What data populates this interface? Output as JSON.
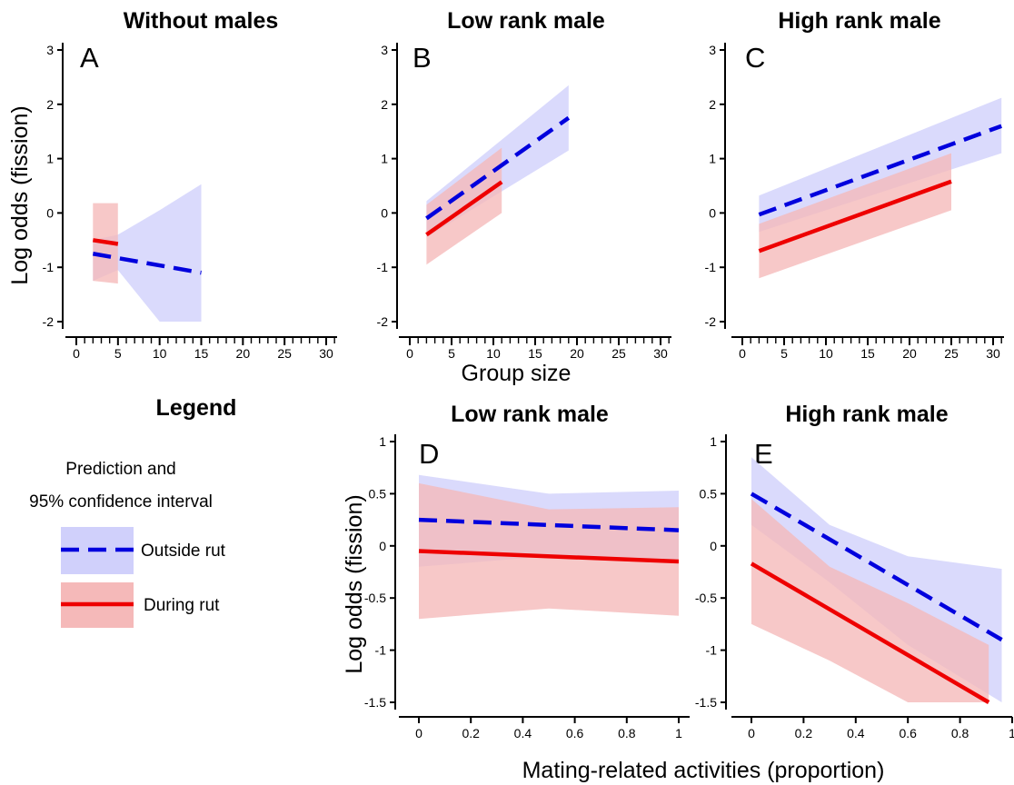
{
  "chart_data": [
    {
      "type": "line",
      "panel": "A",
      "title": "Without males",
      "ylabel": "Log odds (fission)",
      "xlabel": "",
      "xlim": [
        0,
        32
      ],
      "ylim": [
        -2.2,
        3.2
      ],
      "xticks": [
        0,
        5,
        10,
        15,
        20,
        25,
        30
      ],
      "yticks": [
        -2,
        -1,
        0,
        1,
        2,
        3
      ],
      "series": [
        {
          "name": "Outside rut",
          "style": "dashed",
          "color": "#0000dd",
          "band_color": "#d0d0fb",
          "x": [
            2,
            15
          ],
          "y": [
            -0.75,
            -1.1
          ],
          "band": {
            "x": [
              2,
              5,
              10,
              15
            ],
            "lower": [
              -1.25,
              -1.05,
              -2.0,
              -2.0
            ],
            "upper": [
              -0.5,
              -0.4,
              0.05,
              0.53
            ]
          }
        },
        {
          "name": "During rut",
          "style": "solid",
          "color": "#ee0000",
          "band_color": "#f5b9b9",
          "x": [
            2,
            5
          ],
          "y": [
            -0.5,
            -0.57
          ],
          "band": {
            "x": [
              2,
              5
            ],
            "lower": [
              -1.25,
              -1.3
            ],
            "upper": [
              0.18,
              0.18
            ]
          }
        }
      ]
    },
    {
      "type": "line",
      "panel": "B",
      "title": "Low rank male",
      "ylabel": "",
      "xlabel": "Group size",
      "xlim": [
        0,
        32
      ],
      "ylim": [
        -2.2,
        3.2
      ],
      "xticks": [
        0,
        5,
        10,
        15,
        20,
        25,
        30
      ],
      "yticks": [
        -2,
        -1,
        0,
        1,
        2,
        3
      ],
      "series": [
        {
          "name": "Outside rut",
          "style": "dashed",
          "color": "#0000dd",
          "band_color": "#d0d0fb",
          "x": [
            2,
            19
          ],
          "y": [
            -0.1,
            1.75
          ],
          "band": {
            "x": [
              2,
              19
            ],
            "lower": [
              -0.45,
              1.15
            ],
            "upper": [
              0.22,
              2.35
            ]
          }
        },
        {
          "name": "During rut",
          "style": "solid",
          "color": "#ee0000",
          "band_color": "#f5b9b9",
          "x": [
            2,
            11
          ],
          "y": [
            -0.4,
            0.57
          ],
          "band": {
            "x": [
              2,
              11
            ],
            "lower": [
              -0.95,
              0.0
            ],
            "upper": [
              0.15,
              1.2
            ]
          }
        }
      ]
    },
    {
      "type": "line",
      "panel": "C",
      "title": "High rank male",
      "ylabel": "",
      "xlabel": "",
      "xlim": [
        0,
        32
      ],
      "ylim": [
        -2.2,
        3.2
      ],
      "xticks": [
        0,
        5,
        10,
        15,
        20,
        25,
        30
      ],
      "yticks": [
        -2,
        -1,
        0,
        1,
        2,
        3
      ],
      "series": [
        {
          "name": "Outside rut",
          "style": "dashed",
          "color": "#0000dd",
          "band_color": "#d0d0fb",
          "x": [
            2,
            31
          ],
          "y": [
            -0.03,
            1.6
          ],
          "band": {
            "x": [
              2,
              31
            ],
            "lower": [
              -0.35,
              1.1
            ],
            "upper": [
              0.32,
              2.12
            ]
          }
        },
        {
          "name": "During rut",
          "style": "solid",
          "color": "#ee0000",
          "band_color": "#f5b9b9",
          "x": [
            2,
            25
          ],
          "y": [
            -0.7,
            0.58
          ],
          "band": {
            "x": [
              2,
              25
            ],
            "lower": [
              -1.2,
              0.05
            ],
            "upper": [
              -0.2,
              1.1
            ]
          }
        }
      ]
    },
    {
      "type": "line",
      "panel": "D",
      "title": "Low rank male",
      "ylabel": "Log odds (fission)",
      "xlabel": "",
      "xlim": [
        -0.05,
        1.02
      ],
      "ylim": [
        -1.6,
        1.1
      ],
      "xticks": [
        0,
        0.2,
        0.4,
        0.6,
        0.8,
        1
      ],
      "yticks": [
        -1.5,
        -1,
        -0.5,
        0,
        0.5,
        1
      ],
      "series": [
        {
          "name": "Outside rut",
          "style": "dashed",
          "color": "#0000dd",
          "band_color": "#d0d0fb",
          "x": [
            0,
            1
          ],
          "y": [
            0.25,
            0.15
          ],
          "band": {
            "x": [
              0,
              0.5,
              1
            ],
            "lower": [
              -0.2,
              -0.1,
              -0.15
            ],
            "upper": [
              0.68,
              0.5,
              0.53
            ]
          }
        },
        {
          "name": "During rut",
          "style": "solid",
          "color": "#ee0000",
          "band_color": "#f5b9b9",
          "x": [
            0,
            1
          ],
          "y": [
            -0.05,
            -0.15
          ],
          "band": {
            "x": [
              0,
              0.5,
              1
            ],
            "lower": [
              -0.7,
              -0.6,
              -0.67
            ],
            "upper": [
              0.6,
              0.35,
              0.37
            ]
          }
        }
      ]
    },
    {
      "type": "line",
      "panel": "E",
      "title": "High rank male",
      "ylabel": "",
      "xlabel": "Mating-related activities (proportion)",
      "xlim": [
        -0.05,
        1.02
      ],
      "ylim": [
        -1.6,
        1.1
      ],
      "xticks": [
        0,
        0.2,
        0.4,
        0.6,
        0.8,
        1
      ],
      "yticks": [
        -1.5,
        -1,
        -0.5,
        0,
        0.5,
        1
      ],
      "series": [
        {
          "name": "Outside rut",
          "style": "dashed",
          "color": "#0000dd",
          "band_color": "#d0d0fb",
          "x": [
            0,
            0.96
          ],
          "y": [
            0.5,
            -0.9
          ],
          "band": {
            "x": [
              0,
              0.3,
              0.6,
              0.96
            ],
            "lower": [
              0.2,
              -0.35,
              -0.95,
              -1.5
            ],
            "upper": [
              0.85,
              0.2,
              -0.1,
              -0.22
            ]
          }
        },
        {
          "name": "During rut",
          "style": "solid",
          "color": "#ee0000",
          "band_color": "#f5b9b9",
          "x": [
            0,
            0.91
          ],
          "y": [
            -0.17,
            -1.5
          ],
          "band": {
            "x": [
              0,
              0.3,
              0.6,
              0.91
            ],
            "lower": [
              -0.75,
              -1.1,
              -1.5,
              -1.5
            ],
            "upper": [
              0.45,
              -0.2,
              -0.55,
              -0.95
            ]
          }
        }
      ]
    }
  ],
  "legend": {
    "title": "Legend",
    "subtitle_line1": "Prediction and",
    "subtitle_line2": "95% confidence interval",
    "items": [
      {
        "label": "Outside rut",
        "style": "dashed",
        "color": "#0000dd",
        "band_color": "#d0d0fb"
      },
      {
        "label": "During rut",
        "style": "solid",
        "color": "#ee0000",
        "band_color": "#f5b9b9"
      }
    ]
  }
}
